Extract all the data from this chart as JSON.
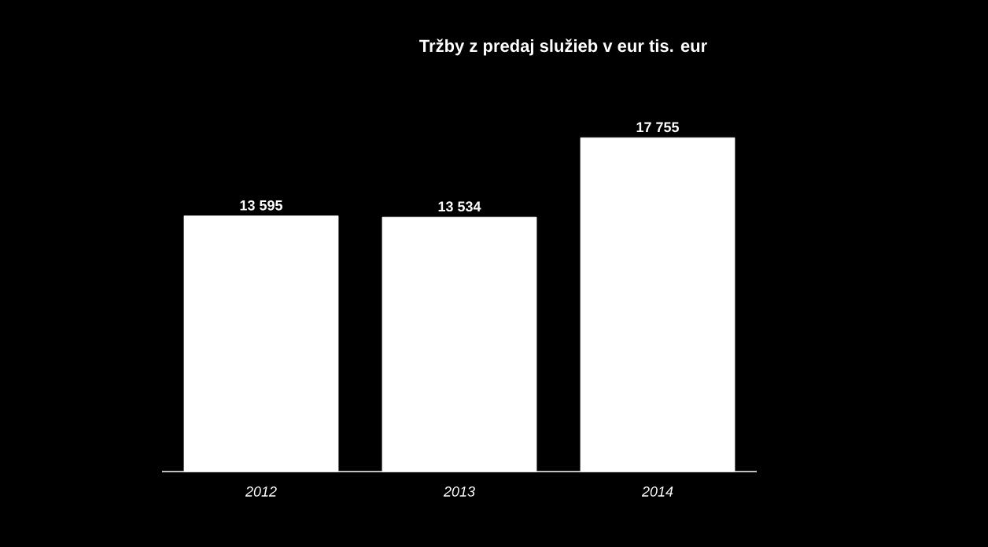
{
  "chart_data": {
    "type": "bar",
    "title": "Tržby z predaj služieb v eur tis. eur",
    "categories": [
      "2012",
      "2013",
      "2014"
    ],
    "values": [
      13595,
      13534,
      17755
    ],
    "value_labels": [
      "13 595",
      "13 534",
      "17 755"
    ],
    "color": "#ffffff"
  }
}
